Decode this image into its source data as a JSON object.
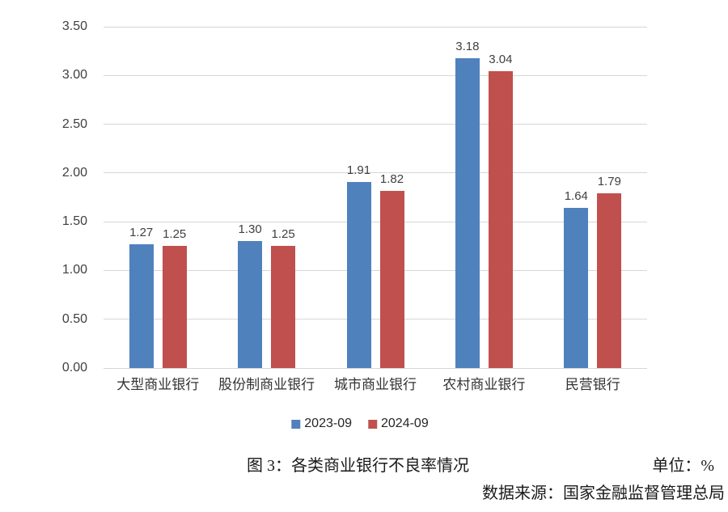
{
  "chart_data": {
    "type": "bar",
    "title": "图 3：各类商业银行不良率情况",
    "unit_label": "单位：%",
    "source_label": "数据来源：国家金融监督管理总局",
    "categories": [
      "大型商业银行",
      "股份制商业银行",
      "城市商业银行",
      "农村商业银行",
      "民营银行"
    ],
    "series": [
      {
        "name": "2023-09",
        "color": "#4F81BD",
        "values": [
          1.27,
          1.3,
          1.91,
          3.18,
          1.64
        ]
      },
      {
        "name": "2024-09",
        "color": "#C0504D",
        "values": [
          1.25,
          1.25,
          1.82,
          3.04,
          1.79
        ]
      }
    ],
    "ylim": [
      0,
      3.5
    ],
    "ytick_step": 0.5,
    "ytick_decimals": 2,
    "grid": "horizontal",
    "gridline_color": "#d6d6d6",
    "legend_position": "bottom",
    "value_labels": true,
    "value_label_decimals": 2
  }
}
